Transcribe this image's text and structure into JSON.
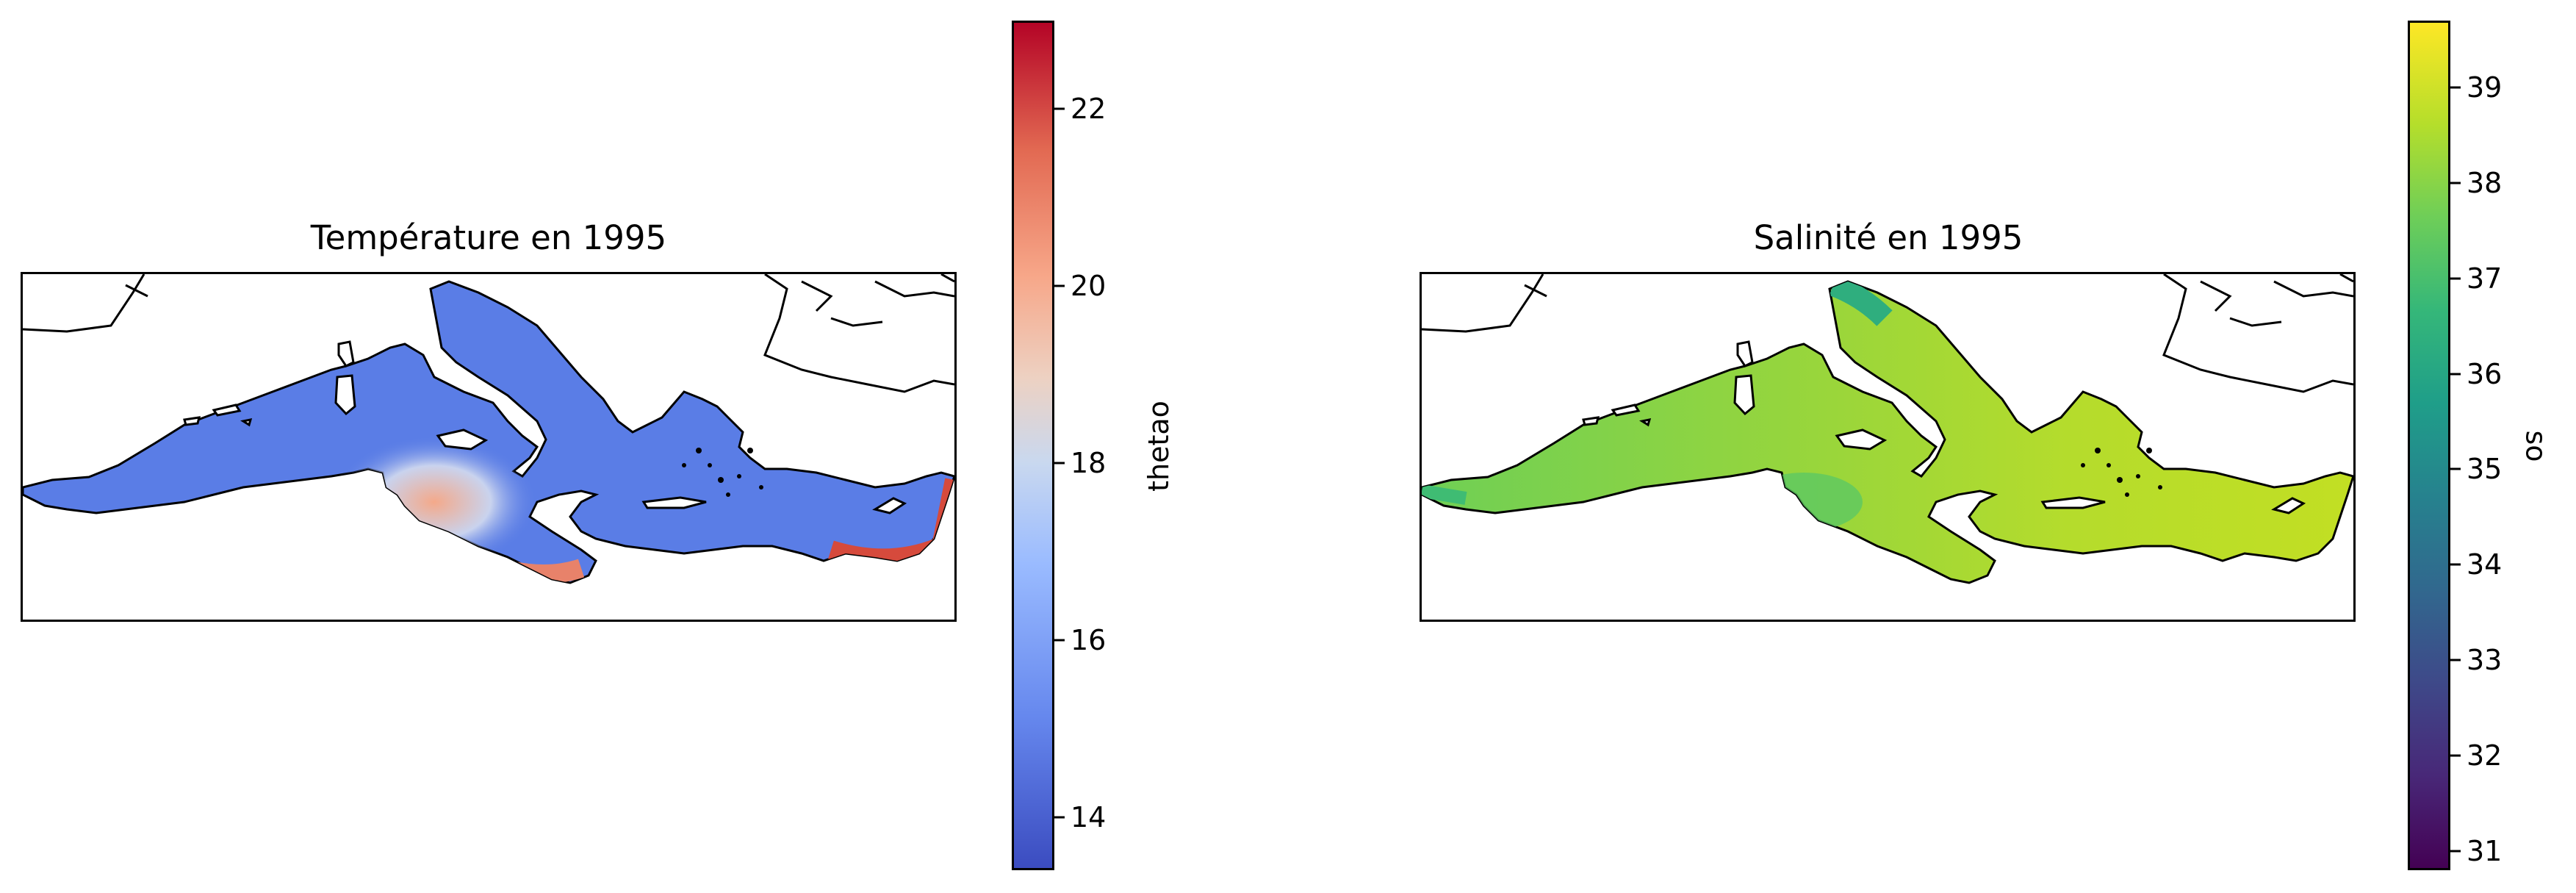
{
  "panels": [
    {
      "title": "Température en 1995",
      "colorbar": {
        "label": "thetao",
        "colormap": "coolwarm",
        "vmin": 13.4,
        "vmax": 23.0,
        "ticks": [
          "14",
          "16",
          "18",
          "20",
          "22"
        ],
        "tick_values": [
          14,
          16,
          18,
          20,
          22
        ],
        "colors": [
          "#3b4cc0",
          "#6688ee",
          "#9abbff",
          "#c9d8ef",
          "#edd1c2",
          "#f7a789",
          "#e26952",
          "#b40426"
        ]
      },
      "sea_colors": {
        "base": "#5a7de6",
        "warm_gulf": "#f4a98a",
        "warm_coast": "#e8826a",
        "hot_coast": "#d64a3c"
      }
    },
    {
      "title": "Salinité en 1995",
      "colorbar": {
        "label": "so",
        "colormap": "viridis",
        "vmin": 30.8,
        "vmax": 39.7,
        "ticks": [
          "31",
          "32",
          "33",
          "34",
          "35",
          "36",
          "37",
          "38",
          "39"
        ],
        "tick_values": [
          31,
          32,
          33,
          34,
          35,
          36,
          37,
          38,
          39
        ],
        "colors": [
          "#440154",
          "#482878",
          "#3e4989",
          "#31688e",
          "#26828e",
          "#1f9e89",
          "#35b779",
          "#6ece58",
          "#b5de2b",
          "#fde725"
        ]
      },
      "sea_colors": {
        "base": "#9bd63a",
        "west": "#6fcf55",
        "adriatic": "#2fae7e",
        "east": "#c2df23"
      }
    }
  ]
}
